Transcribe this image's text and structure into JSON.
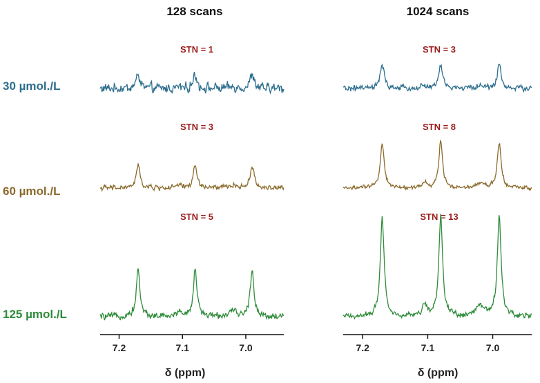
{
  "colors": {
    "stn": "#9b1c1c",
    "row_30": "#2d6e8e",
    "row_60": "#8b6a2c",
    "row_125": "#2e8b3a",
    "axis": "#111111"
  },
  "columns": [
    {
      "title": "128 scans"
    },
    {
      "title": "1024 scans"
    }
  ],
  "rows": [
    {
      "label": "30 µmol./L"
    },
    {
      "label": "60 µmol./L"
    },
    {
      "label": "125 µmol./L"
    }
  ],
  "chart_data": {
    "type": "line",
    "xlabel": "δ (ppm)",
    "x_reversed": true,
    "xlim": [
      7.23,
      6.94
    ],
    "xticks": [
      7.2,
      7.1,
      7.0
    ],
    "xtick_labels": [
      "7.2",
      "7.1",
      "7.0"
    ],
    "peaks_ppm": [
      7.17,
      7.08,
      6.99
    ],
    "panels": [
      {
        "scans": "128 scans",
        "concentration": "30 µmol./L",
        "stn_label": "STN = 1",
        "stn": 1
      },
      {
        "scans": "128 scans",
        "concentration": "60 µmol./L",
        "stn_label": "STN = 3",
        "stn": 3
      },
      {
        "scans": "128 scans",
        "concentration": "125 µmol./L",
        "stn_label": "STN = 5",
        "stn": 5
      },
      {
        "scans": "1024 scans",
        "concentration": "30 µmol./L",
        "stn_label": "STN = 3",
        "stn": 3
      },
      {
        "scans": "1024 scans",
        "concentration": "60 µmol./L",
        "stn_label": "STN = 8",
        "stn": 8
      },
      {
        "scans": "1024 scans",
        "concentration": "125 µmol./L",
        "stn_label": "STN = 13",
        "stn": 13
      }
    ]
  }
}
